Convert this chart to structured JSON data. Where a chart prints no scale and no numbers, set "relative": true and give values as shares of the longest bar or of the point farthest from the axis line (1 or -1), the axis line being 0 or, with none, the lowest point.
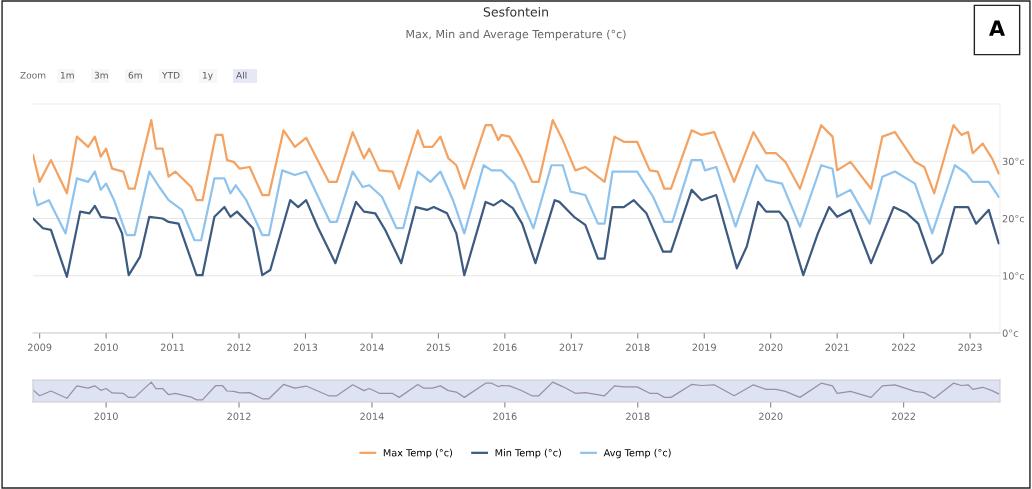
{
  "chart_data": [
    {
      "type": "line",
      "title": "Sesfontein",
      "subtitle": "Max, Min and Average Temperature (°c)",
      "annotations": [
        "Zoom",
        "1m",
        "3m",
        "6m",
        "YTD",
        "1y",
        "All",
        "A"
      ],
      "xlim": [
        2008.9,
        2023.45
      ],
      "xticks": [
        2009,
        2010,
        2011,
        2012,
        2013,
        2014,
        2015,
        2016,
        2017,
        2018,
        2019,
        2020,
        2021,
        2022,
        2023
      ],
      "ylim": [
        0,
        40
      ],
      "yticks": [
        {
          "value": 0,
          "label": "0°c"
        },
        {
          "value": 10,
          "label": "10°c"
        },
        {
          "value": 20,
          "label": "20°c"
        },
        {
          "value": 30,
          "label": "30°c"
        }
      ],
      "grid": "y",
      "legend": "bottom",
      "marker": "none",
      "line_style": "solid",
      "series": [
        {
          "name": "Max Temp (°c)",
          "color": "#f4a261",
          "x": [
            2008.9,
            2009.0,
            2009.17,
            2009.41,
            2009.56,
            2009.73,
            2009.83,
            2009.92,
            2010.0,
            2010.09,
            2010.26,
            2010.34,
            2010.43,
            2010.68,
            2010.75,
            2010.85,
            2010.94,
            2011.04,
            2011.28,
            2011.36,
            2011.45,
            2011.65,
            2011.75,
            2011.82,
            2011.92,
            2012.01,
            2012.16,
            2012.35,
            2012.45,
            2012.67,
            2012.84,
            2013.01,
            2013.35,
            2013.47,
            2013.71,
            2013.88,
            2013.96,
            2014.11,
            2014.31,
            2014.41,
            2014.69,
            2014.78,
            2014.91,
            2015.03,
            2015.15,
            2015.27,
            2015.39,
            2015.71,
            2015.8,
            2015.9,
            2015.95,
            2016.07,
            2016.24,
            2016.41,
            2016.51,
            2016.72,
            2016.87,
            2017.06,
            2017.21,
            2017.5,
            2017.65,
            2017.79,
            2017.99,
            2018.18,
            2018.3,
            2018.4,
            2018.5,
            2018.81,
            2018.96,
            2019.15,
            2019.45,
            2019.74,
            2019.93,
            2020.08,
            2020.22,
            2020.44,
            2020.76,
            2020.93,
            2021.0,
            2021.2,
            2021.51,
            2021.68,
            2021.87,
            2022.17,
            2022.31,
            2022.46,
            2022.75,
            2022.87,
            2022.97,
            2023.04,
            2023.19,
            2023.33,
            2023.43
          ],
          "values": [
            31.1,
            26.4,
            30.2,
            24.4,
            34.3,
            32.5,
            34.3,
            30.8,
            32.2,
            28.7,
            28.2,
            25.2,
            25.2,
            37.2,
            32.2,
            32.2,
            27.3,
            28.2,
            25.5,
            23.2,
            23.2,
            34.6,
            34.6,
            30.2,
            29.9,
            28.7,
            29.0,
            24.1,
            24.1,
            35.4,
            32.5,
            34.1,
            26.4,
            26.4,
            35.1,
            30.5,
            32.2,
            28.4,
            28.2,
            25.2,
            35.4,
            32.5,
            32.5,
            34.3,
            30.5,
            29.3,
            25.2,
            36.3,
            36.3,
            33.7,
            34.6,
            34.3,
            30.8,
            26.4,
            26.4,
            37.2,
            33.7,
            28.4,
            29.0,
            26.4,
            34.3,
            33.4,
            33.4,
            28.4,
            28.2,
            25.2,
            25.2,
            35.4,
            34.6,
            35.1,
            26.4,
            35.1,
            31.4,
            31.4,
            29.9,
            25.2,
            36.3,
            34.3,
            28.4,
            29.9,
            25.2,
            34.3,
            35.1,
            29.9,
            29.0,
            24.4,
            36.3,
            34.6,
            35.1,
            31.4,
            33.1,
            30.5,
            27.9
          ]
        },
        {
          "name": "Min Temp (°c)",
          "color": "#3d5a80",
          "x": [
            2008.9,
            2009.05,
            2009.17,
            2009.41,
            2009.61,
            2009.75,
            2009.83,
            2009.92,
            2010.14,
            2010.24,
            2010.34,
            2010.51,
            2010.65,
            2010.85,
            2010.94,
            2011.09,
            2011.36,
            2011.45,
            2011.63,
            2011.78,
            2011.87,
            2011.97,
            2012.21,
            2012.35,
            2012.47,
            2012.77,
            2012.89,
            2013.01,
            2013.18,
            2013.45,
            2013.76,
            2013.88,
            2014.05,
            2014.2,
            2014.44,
            2014.66,
            2014.83,
            2014.93,
            2015.13,
            2015.27,
            2015.39,
            2015.71,
            2015.83,
            2015.95,
            2016.12,
            2016.26,
            2016.46,
            2016.75,
            2016.82,
            2017.04,
            2017.21,
            2017.4,
            2017.5,
            2017.62,
            2017.79,
            2017.94,
            2018.13,
            2018.38,
            2018.5,
            2018.81,
            2018.96,
            2019.18,
            2019.49,
            2019.64,
            2019.81,
            2019.93,
            2020.13,
            2020.25,
            2020.49,
            2020.71,
            2020.88,
            2021.0,
            2021.2,
            2021.51,
            2021.85,
            2022.05,
            2022.22,
            2022.43,
            2022.58,
            2022.77,
            2022.97,
            2023.09,
            2023.28,
            2023.43
          ],
          "values": [
            20.0,
            18.3,
            18.0,
            9.8,
            21.2,
            20.9,
            22.2,
            20.3,
            20.0,
            17.4,
            10.1,
            13.3,
            20.3,
            20.0,
            19.4,
            19.1,
            10.1,
            10.1,
            20.3,
            22.0,
            20.3,
            21.2,
            18.3,
            10.1,
            11.0,
            23.2,
            22.0,
            23.2,
            18.6,
            12.2,
            22.9,
            21.2,
            20.9,
            18.0,
            12.2,
            22.0,
            21.5,
            22.0,
            20.9,
            17.4,
            10.1,
            22.9,
            22.3,
            23.2,
            21.8,
            19.1,
            12.2,
            23.2,
            22.9,
            20.3,
            18.9,
            13.0,
            13.0,
            22.0,
            22.0,
            23.2,
            20.9,
            14.2,
            14.2,
            25.0,
            23.2,
            24.1,
            11.3,
            15.1,
            22.9,
            21.2,
            21.2,
            19.4,
            10.1,
            17.4,
            22.0,
            20.3,
            21.5,
            12.2,
            22.0,
            20.9,
            19.1,
            12.2,
            13.9,
            22.0,
            22.0,
            19.1,
            21.5,
            15.7
          ]
        },
        {
          "name": "Avg Temp (°c)",
          "color": "#8ec3ee",
          "x": [
            2008.9,
            2008.97,
            2009.14,
            2009.39,
            2009.56,
            2009.73,
            2009.83,
            2009.92,
            2010.0,
            2010.12,
            2010.31,
            2010.43,
            2010.65,
            2010.8,
            2010.94,
            2011.14,
            2011.33,
            2011.43,
            2011.63,
            2011.78,
            2011.87,
            2011.95,
            2012.11,
            2012.35,
            2012.45,
            2012.65,
            2012.84,
            2013.01,
            2013.37,
            2013.47,
            2013.71,
            2013.86,
            2013.96,
            2014.15,
            2014.37,
            2014.47,
            2014.69,
            2014.88,
            2015.03,
            2015.22,
            2015.39,
            2015.68,
            2015.8,
            2015.95,
            2016.14,
            2016.43,
            2016.7,
            2016.87,
            2016.99,
            2017.21,
            2017.4,
            2017.5,
            2017.62,
            2017.99,
            2018.23,
            2018.4,
            2018.52,
            2018.81,
            2018.96,
            2019.01,
            2019.18,
            2019.47,
            2019.79,
            2019.93,
            2020.17,
            2020.44,
            2020.76,
            2020.93,
            2021.0,
            2021.2,
            2021.49,
            2021.68,
            2021.87,
            2022.17,
            2022.43,
            2022.77,
            2022.94,
            2023.04,
            2023.28,
            2023.43
          ],
          "values": [
            25.2,
            22.3,
            23.2,
            17.4,
            27.0,
            26.4,
            28.2,
            25.0,
            26.1,
            23.2,
            17.1,
            17.1,
            28.2,
            25.5,
            23.2,
            21.5,
            16.2,
            16.2,
            27.0,
            27.0,
            24.4,
            25.8,
            23.2,
            17.1,
            17.1,
            28.4,
            27.6,
            28.2,
            19.4,
            19.4,
            28.2,
            25.5,
            25.8,
            23.8,
            18.3,
            18.3,
            28.2,
            26.4,
            28.2,
            23.2,
            17.4,
            29.3,
            28.4,
            28.4,
            26.1,
            18.3,
            29.3,
            29.3,
            24.7,
            24.1,
            19.1,
            19.1,
            28.2,
            28.2,
            23.8,
            19.4,
            19.4,
            30.2,
            30.2,
            28.4,
            29.0,
            18.6,
            29.3,
            26.7,
            26.1,
            18.6,
            29.3,
            28.7,
            23.8,
            25.0,
            19.1,
            27.3,
            28.2,
            26.1,
            17.4,
            29.3,
            27.9,
            26.4,
            26.4,
            23.8
          ]
        }
      ]
    },
    {
      "type": "line",
      "xlim": [
        2008.9,
        2023.45
      ],
      "xticks": [
        2010,
        2012,
        2014,
        2016,
        2018,
        2020,
        2022
      ],
      "relative": true,
      "tick_labels": "x",
      "marker": "none",
      "line_style": "solid",
      "series": [
        {
          "color": "#9a8fa8",
          "x": [
            2008.9,
            2009.0,
            2009.17,
            2009.41,
            2009.56,
            2009.73,
            2009.83,
            2009.92,
            2010.0,
            2010.09,
            2010.26,
            2010.34,
            2010.43,
            2010.68,
            2010.75,
            2010.85,
            2010.94,
            2011.04,
            2011.28,
            2011.36,
            2011.45,
            2011.65,
            2011.75,
            2011.82,
            2011.92,
            2012.01,
            2012.16,
            2012.35,
            2012.45,
            2012.67,
            2012.84,
            2013.01,
            2013.35,
            2013.47,
            2013.71,
            2013.88,
            2013.96,
            2014.11,
            2014.31,
            2014.41,
            2014.69,
            2014.78,
            2014.91,
            2015.03,
            2015.15,
            2015.27,
            2015.39,
            2015.71,
            2015.8,
            2015.9,
            2015.95,
            2016.07,
            2016.24,
            2016.41,
            2016.51,
            2016.72,
            2016.87,
            2017.06,
            2017.21,
            2017.5,
            2017.65,
            2017.79,
            2017.99,
            2018.18,
            2018.3,
            2018.4,
            2018.5,
            2018.81,
            2018.96,
            2019.15,
            2019.45,
            2019.74,
            2019.93,
            2020.08,
            2020.22,
            2020.44,
            2020.76,
            2020.93,
            2021.0,
            2021.2,
            2021.51,
            2021.68,
            2021.87,
            2022.17,
            2022.31,
            2022.46,
            2022.75,
            2022.87,
            2022.97,
            2023.04,
            2023.19,
            2023.33,
            2023.43
          ],
          "values": [
            0.56,
            0.23,
            0.5,
            0.09,
            0.79,
            0.66,
            0.79,
            0.54,
            0.64,
            0.39,
            0.36,
            0.14,
            0.14,
            1,
            0.64,
            0.64,
            0.29,
            0.36,
            0.16,
            0,
            0,
            0.81,
            0.81,
            0.5,
            0.48,
            0.39,
            0.41,
            0.06,
            0.06,
            0.87,
            0.66,
            0.78,
            0.23,
            0.23,
            0.85,
            0.52,
            0.64,
            0.37,
            0.36,
            0.14,
            0.87,
            0.66,
            0.66,
            0.79,
            0.52,
            0.44,
            0.14,
            0.94,
            0.94,
            0.75,
            0.81,
            0.79,
            0.54,
            0.23,
            0.23,
            1,
            0.75,
            0.37,
            0.41,
            0.23,
            0.79,
            0.73,
            0.73,
            0.37,
            0.36,
            0.14,
            0.14,
            0.87,
            0.81,
            0.85,
            0.23,
            0.85,
            0.59,
            0.59,
            0.48,
            0.14,
            0.94,
            0.79,
            0.37,
            0.48,
            0.14,
            0.79,
            0.85,
            0.48,
            0.41,
            0.09,
            0.94,
            0.81,
            0.85,
            0.59,
            0.71,
            0.52,
            0.34
          ]
        }
      ]
    }
  ]
}
